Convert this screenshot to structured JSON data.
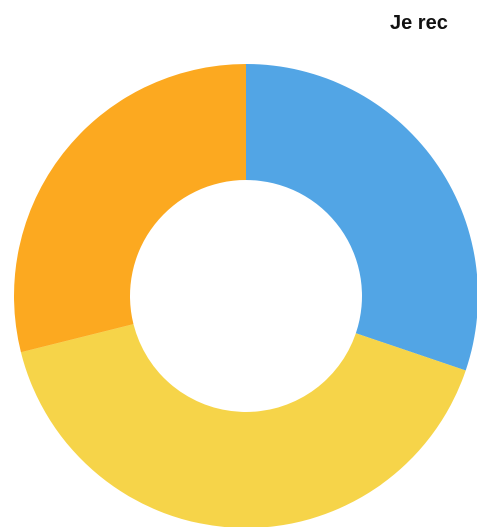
{
  "chart_data": {
    "type": "pie",
    "donut": true,
    "title": "Je rec",
    "start_angle_deg": 0,
    "direction": "clockwise",
    "slices": [
      {
        "value": 30.2,
        "color": "#52a5e5"
      },
      {
        "value": 40.9,
        "color": "#f6d449"
      },
      {
        "value": 28.9,
        "color": "#fca920"
      }
    ],
    "legend": "none"
  }
}
